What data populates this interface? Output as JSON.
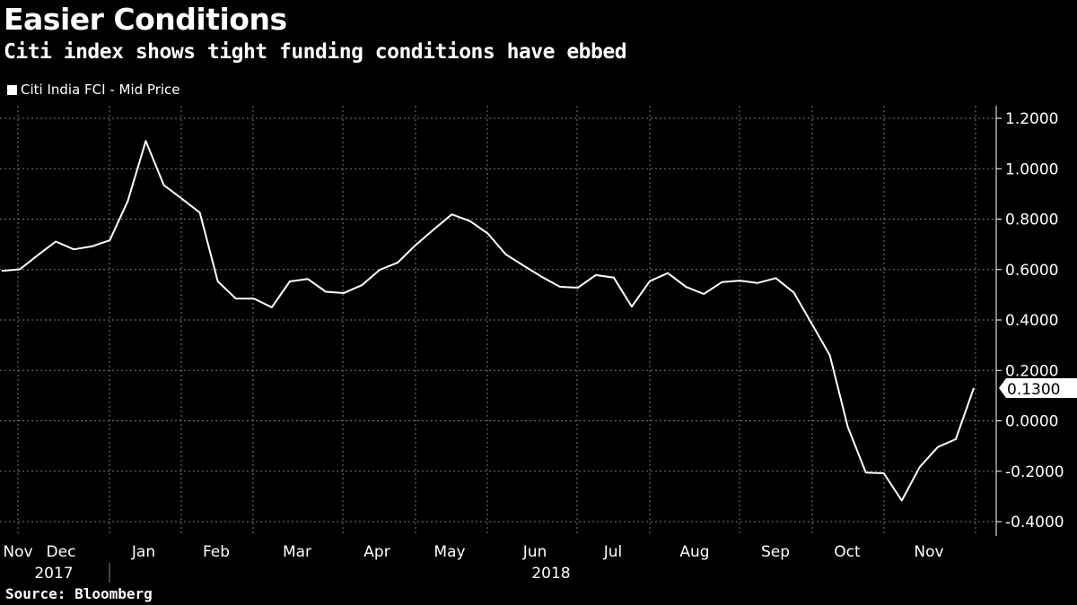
{
  "header": {
    "title": "Easier Conditions",
    "subtitle": "Citi index shows tight funding conditions have ebbed"
  },
  "footer": {
    "source": "Source: Bloomberg"
  },
  "colors": {
    "background": "#000000",
    "line": "#ffffff",
    "grid": "#7a7a7a"
  },
  "chart_data": {
    "type": "line",
    "title": "Easier Conditions",
    "subtitle": "Citi index shows tight funding conditions have ebbed",
    "legend": {
      "entries": [
        "Citi India FCI - Mid Price"
      ],
      "placement": "top-left"
    },
    "xlabel": "",
    "ylabel": "",
    "ylim": [
      -0.4,
      1.2
    ],
    "yticks": [
      "1.2000",
      "1.0000",
      "0.8000",
      "0.6000",
      "0.4000",
      "0.2000",
      "0.0000",
      "-0.2000",
      "-0.4000"
    ],
    "ytick_values": [
      1.2,
      1.0,
      0.8,
      0.6,
      0.4,
      0.2,
      0.0,
      -0.2,
      -0.4
    ],
    "x_month_labels": [
      "Nov",
      "Dec",
      "Jan",
      "Feb",
      "Mar",
      "Apr",
      "May",
      "Jun",
      "Jul",
      "Aug",
      "Sep",
      "Oct",
      "Nov"
    ],
    "x_year_labels": [
      "2017",
      "2018"
    ],
    "grid": true,
    "last_value_label": "0.1300",
    "series": [
      {
        "name": "Citi India FCI - Mid Price",
        "frequency": "weekly",
        "values": [
          0.595,
          0.601,
          0.657,
          0.711,
          0.68,
          0.692,
          0.716,
          0.872,
          1.11,
          0.935,
          0.881,
          0.826,
          0.553,
          0.485,
          0.485,
          0.45,
          0.553,
          0.563,
          0.512,
          0.507,
          0.538,
          0.599,
          0.628,
          0.698,
          0.759,
          0.819,
          0.793,
          0.743,
          0.66,
          0.615,
          0.571,
          0.532,
          0.528,
          0.578,
          0.568,
          0.453,
          0.554,
          0.586,
          0.532,
          0.503,
          0.55,
          0.556,
          0.547,
          0.566,
          0.509,
          0.385,
          0.26,
          -0.024,
          -0.205,
          -0.208,
          -0.316,
          -0.183,
          -0.104,
          -0.073,
          0.13
        ]
      }
    ]
  }
}
